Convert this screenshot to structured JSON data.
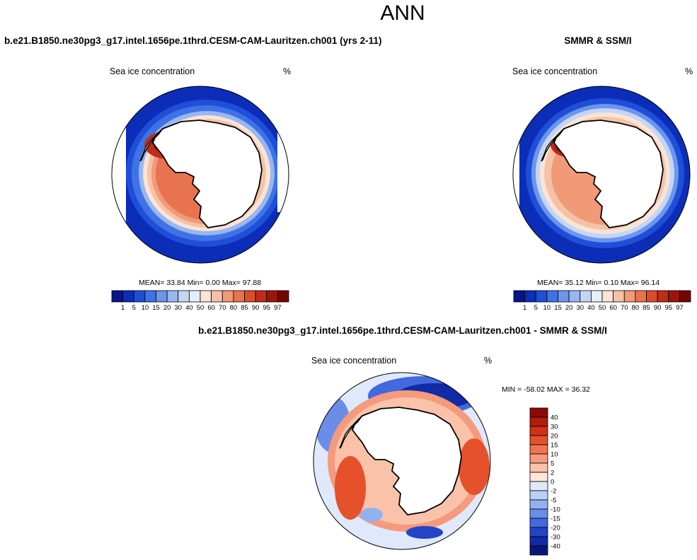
{
  "figure": {
    "title": "ANN",
    "colors": {
      "land": "#ffffff",
      "coast": "#000000"
    }
  },
  "chart_data": [
    {
      "type": "heatmap",
      "projection": "south-polar-stereographic",
      "title": "b.e21.B1850.ne30pg3_g17.intel.1656pe.1thrd.CESM-CAM-Lauritzen.ch001 (yrs 2-11)",
      "variable": "Sea ice concentration",
      "units": "%",
      "stats_text": "MEAN=  33.84  Min=   0.00  Max=  97.88",
      "stats": {
        "mean": 33.84,
        "min": 0.0,
        "max": 97.88
      },
      "colorbar": {
        "orientation": "horizontal",
        "levels": [
          "1",
          "5",
          "10",
          "15",
          "20",
          "30",
          "40",
          "50",
          "60",
          "70",
          "80",
          "85",
          "90",
          "95",
          "97"
        ],
        "colors": [
          "#08148a",
          "#0c2db8",
          "#1f4fd8",
          "#3f72e6",
          "#6d95ec",
          "#98b6f0",
          "#c4d6f5",
          "#e6eefb",
          "#fbe4d6",
          "#f6c2a7",
          "#f09a78",
          "#e8744f",
          "#d94d2c",
          "#bf2c17",
          "#9c150b",
          "#730503"
        ]
      }
    },
    {
      "type": "heatmap",
      "projection": "south-polar-stereographic",
      "title": "SMMR & SSM/I",
      "variable": "Sea ice concentration",
      "units": "%",
      "stats_text": "MEAN=  35.12  Min=   0.10  Max=  96.14",
      "stats": {
        "mean": 35.12,
        "min": 0.1,
        "max": 96.14
      },
      "colorbar": {
        "orientation": "horizontal",
        "levels": [
          "1",
          "5",
          "10",
          "15",
          "20",
          "30",
          "40",
          "50",
          "60",
          "70",
          "80",
          "85",
          "90",
          "95",
          "97"
        ],
        "colors": [
          "#08148a",
          "#0c2db8",
          "#1f4fd8",
          "#3f72e6",
          "#6d95ec",
          "#98b6f0",
          "#c4d6f5",
          "#e6eefb",
          "#fbe4d6",
          "#f6c2a7",
          "#f09a78",
          "#e8744f",
          "#d94d2c",
          "#bf2c17",
          "#9c150b",
          "#730503"
        ]
      }
    },
    {
      "type": "heatmap",
      "projection": "south-polar-stereographic",
      "title": "b.e21.B1850.ne30pg3_g17.intel.1656pe.1thrd.CESM-CAM-Lauritzen.ch001 - SMMR & SSM/I",
      "variable": "Sea ice concentration",
      "units": "%",
      "stats_text": "MIN = -58.02 MAX =  36.32",
      "stats": {
        "min": -58.02,
        "max": 36.32
      },
      "colorbar": {
        "orientation": "vertical",
        "levels": [
          "40",
          "30",
          "20",
          "15",
          "10",
          "5",
          "2",
          "0",
          "-2",
          "-5",
          "-10",
          "-15",
          "-20",
          "-30",
          "-40"
        ],
        "colors": [
          "#8a0c05",
          "#b01d0d",
          "#cf3216",
          "#e4512a",
          "#ef7450",
          "#f59a7c",
          "#f9c2a9",
          "#fde6d8",
          "#dfe9fb",
          "#bcd0f5",
          "#92b1ef",
          "#6a8ee8",
          "#4468de",
          "#2444c8",
          "#112aa6",
          "#0a1677"
        ]
      }
    }
  ]
}
